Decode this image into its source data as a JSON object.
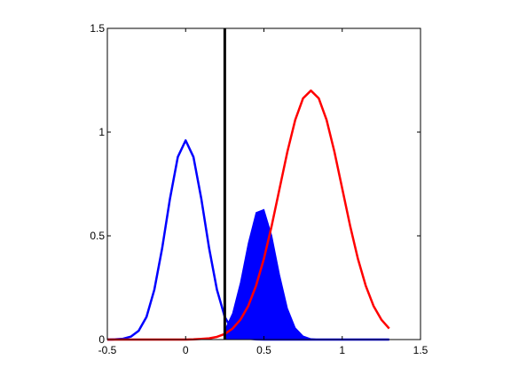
{
  "chart_data": {
    "type": "line",
    "xlim": [
      -0.5,
      1.5
    ],
    "ylim": [
      0,
      1.5
    ],
    "xticks": [
      -0.5,
      0,
      0.5,
      1,
      1.5
    ],
    "yticks": [
      0,
      0.5,
      1,
      1.5
    ],
    "series": [
      {
        "color": "#0000ff",
        "fill": false,
        "x": [
          -0.5,
          -0.45,
          -0.4,
          -0.35,
          -0.3,
          -0.25,
          -0.2,
          -0.15,
          -0.1,
          -0.05,
          0,
          0.05,
          0.1,
          0.15,
          0.2,
          0.25,
          0.3,
          0.35,
          0.4,
          0.45,
          0.5,
          0.55,
          0.6,
          0.65,
          0.7,
          0.75,
          0.8,
          0.85,
          0.9,
          0.95,
          1,
          1.05,
          1.1,
          1.15,
          1.2,
          1.25,
          1.3
        ],
        "values": [
          0,
          0.001,
          0.004,
          0.014,
          0.042,
          0.109,
          0.24,
          0.44,
          0.679,
          0.88,
          0.96,
          0.88,
          0.679,
          0.44,
          0.24,
          0.109,
          0.042,
          0.014,
          0.004,
          0.001,
          0,
          0,
          0,
          0,
          0,
          0,
          0,
          0,
          0,
          0,
          0,
          0,
          0,
          0,
          0,
          0,
          0
        ]
      },
      {
        "color": "#0000ff",
        "fill": true,
        "x": [
          0.25,
          0.3,
          0.35,
          0.4,
          0.45,
          0.5,
          0.55,
          0.6,
          0.65,
          0.7,
          0.75,
          0.8,
          0.85,
          0.9,
          0.95,
          1,
          1.05,
          1.1,
          1.15,
          1.2,
          1.25,
          1.3
        ],
        "values": [
          0.045,
          0.127,
          0.275,
          0.465,
          0.612,
          0.627,
          0.501,
          0.312,
          0.151,
          0.057,
          0.017,
          0.004,
          0.001,
          0,
          0,
          0,
          0,
          0,
          0,
          0,
          0,
          0
        ]
      },
      {
        "color": "#ff0000",
        "fill": false,
        "x": [
          -0.5,
          -0.45,
          -0.4,
          -0.35,
          -0.3,
          -0.25,
          -0.2,
          -0.15,
          -0.1,
          -0.05,
          0,
          0.05,
          0.1,
          0.15,
          0.2,
          0.25,
          0.3,
          0.35,
          0.4,
          0.45,
          0.5,
          0.55,
          0.6,
          0.65,
          0.7,
          0.75,
          0.8,
          0.85,
          0.9,
          0.95,
          1,
          1.05,
          1.1,
          1.15,
          1.2,
          1.25,
          1.3
        ],
        "values": [
          0,
          0,
          0,
          0,
          0,
          0,
          0,
          0,
          0,
          0,
          0,
          0.001,
          0.003,
          0.006,
          0.013,
          0.027,
          0.053,
          0.096,
          0.162,
          0.26,
          0.39,
          0.55,
          0.728,
          0.906,
          1.059,
          1.163,
          1.2,
          1.163,
          1.059,
          0.906,
          0.728,
          0.55,
          0.39,
          0.26,
          0.162,
          0.096,
          0.053
        ]
      }
    ],
    "vline": {
      "x": 0.25,
      "color": "#000000"
    }
  }
}
